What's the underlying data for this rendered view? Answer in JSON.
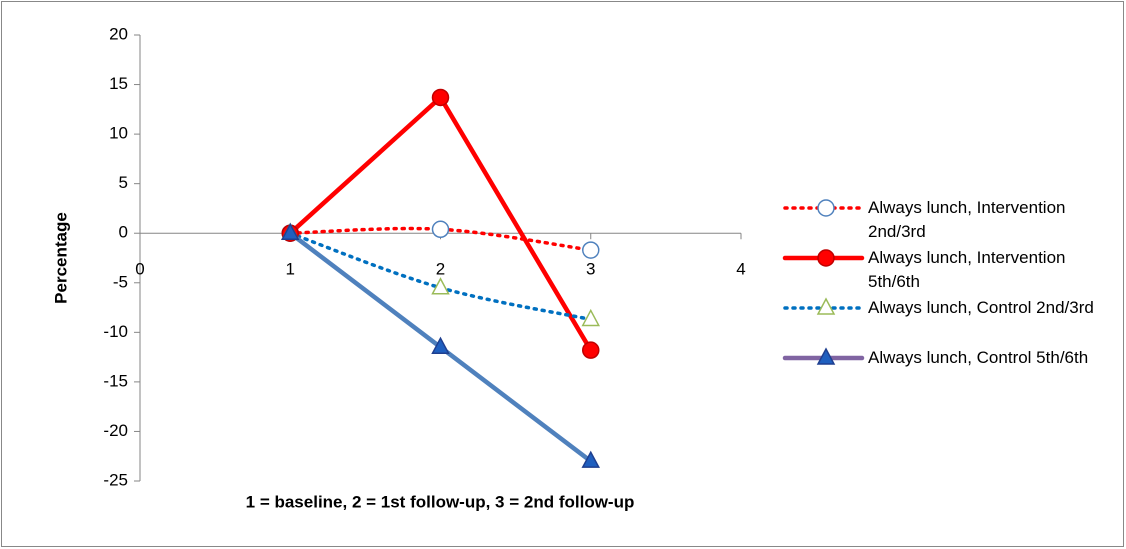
{
  "chart_data": {
    "type": "line",
    "x_label": "1 = baseline, 2 = 1st follow-up, 3 = 2nd follow-up",
    "y_label": "Percentage",
    "x": [
      1,
      2,
      3
    ],
    "series": [
      {
        "name": "Always lunch, Intervention 2nd/3rd",
        "color": "#ff0000",
        "marker": "circle",
        "marker_fill": "#ffffff",
        "marker_stroke": "#4f81bd",
        "dash": true,
        "smooth": true,
        "values": [
          0,
          0.4,
          -1.7
        ]
      },
      {
        "name": "Always lunch, Intervention 5th/6th",
        "color": "#ff0000",
        "marker": "circle",
        "marker_fill": "#ff0000",
        "marker_stroke": "#c00000",
        "dash": false,
        "smooth": false,
        "values": [
          0,
          13.7,
          -11.8
        ]
      },
      {
        "name": "Always lunch, Control 2nd/3rd",
        "color": "#0070c0",
        "marker": "triangle",
        "marker_fill": "#ffffff",
        "marker_stroke": "#9bbb59",
        "dash": true,
        "smooth": true,
        "values": [
          0,
          -5.5,
          -8.7
        ]
      },
      {
        "name": "Always lunch, Control 5th/6th",
        "color": "#4f81bd",
        "legend_color": "#8064a2",
        "marker": "triangle",
        "marker_fill": "#1f5fbf",
        "marker_stroke": "#1f3f8f",
        "dash": false,
        "smooth": false,
        "values": [
          0,
          -11.5,
          -23
        ]
      }
    ],
    "xlim": [
      0,
      4
    ],
    "xticks": [
      0,
      1,
      2,
      3,
      4
    ],
    "ylim": [
      -25,
      20
    ],
    "yticks": [
      -25,
      -20,
      -15,
      -10,
      -5,
      0,
      5,
      10,
      15,
      20
    ]
  }
}
